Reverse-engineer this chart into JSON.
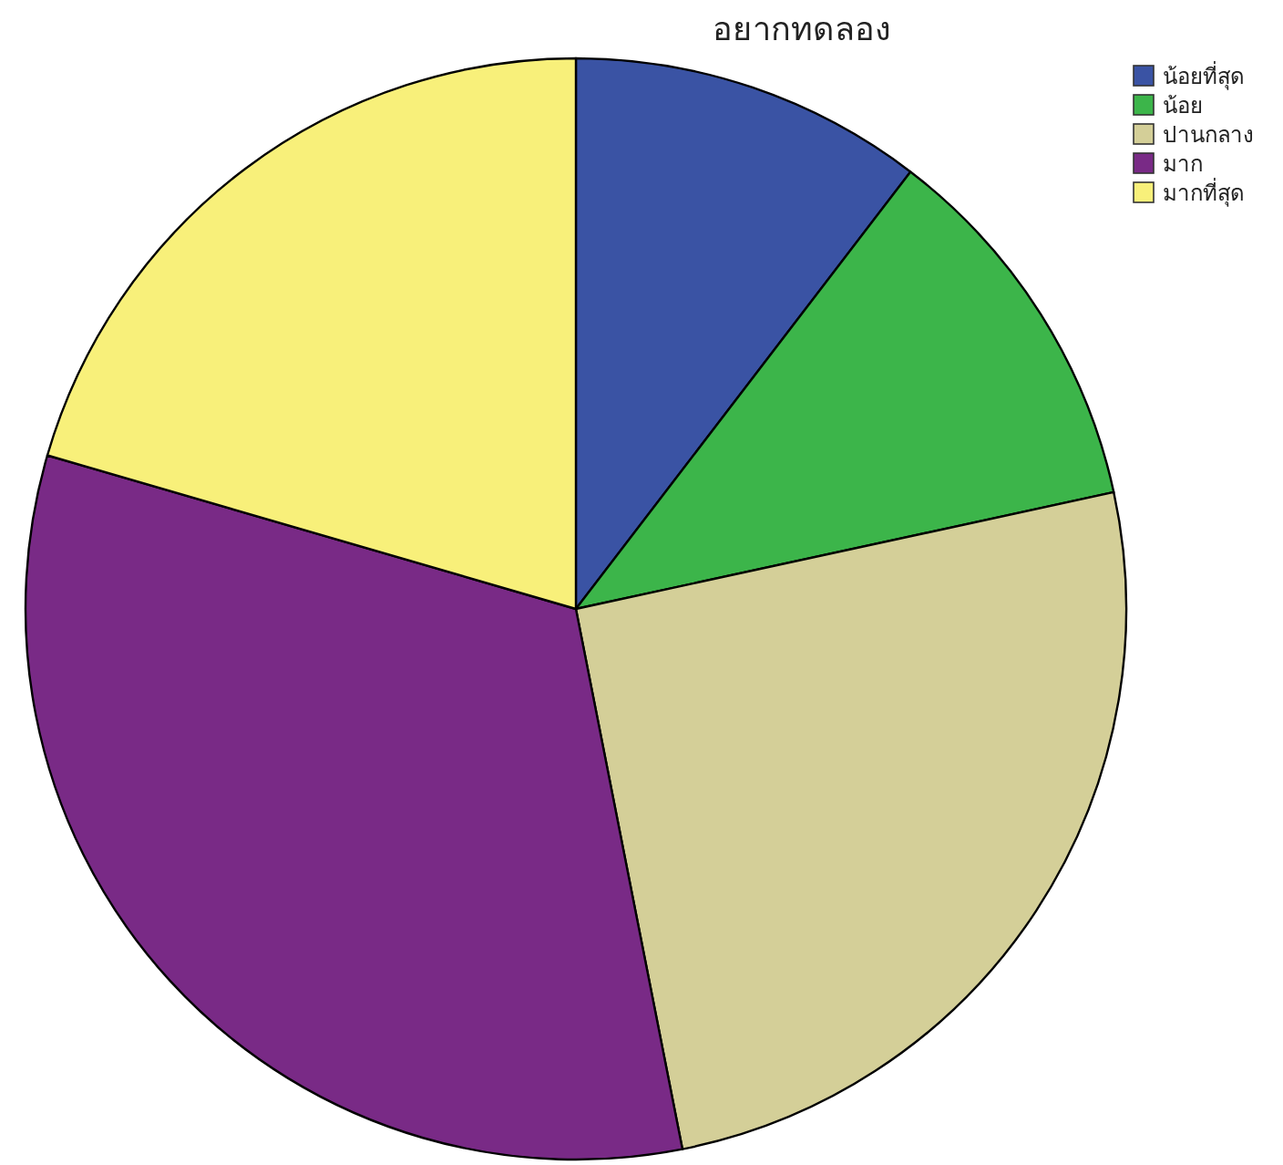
{
  "chart_data": {
    "type": "pie",
    "title": "อยากทดลอง",
    "legend": "top right",
    "categories": [
      "น้อยที่สุด",
      "น้อย",
      "ปานกลาง",
      "มาก",
      "มากที่สุด"
    ],
    "values": [
      10.4,
      11.2,
      25.3,
      32.6,
      20.5
    ],
    "colors": [
      "#3a53a4",
      "#3cb54a",
      "#d4cf98",
      "#792a86",
      "#f8f07a"
    ]
  }
}
